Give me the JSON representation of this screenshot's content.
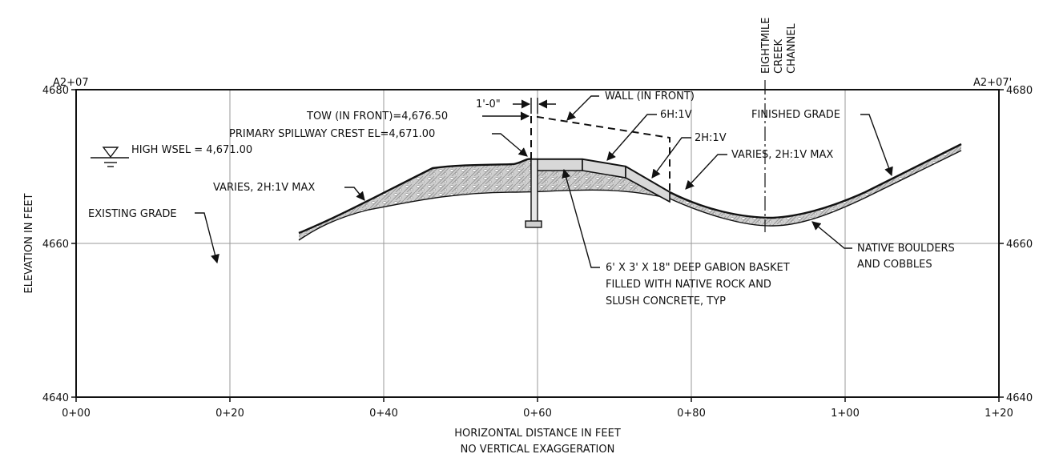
{
  "section": {
    "left_mark": "A2+07",
    "right_mark": "A2+07'"
  },
  "axes": {
    "y_labels_left": [
      "4680",
      "4660",
      "4640"
    ],
    "y_labels_right": [
      "4680",
      "4660",
      "4640"
    ],
    "x_labels": [
      "0+00",
      "0+20",
      "0+40",
      "0+60",
      "0+80",
      "1+00",
      "1+20"
    ],
    "y_title": "ELEVATION IN FEET",
    "x_title_line1": "HORIZONTAL DISTANCE IN FEET",
    "x_title_line2": "NO VERTICAL EXAGGERATION"
  },
  "callouts": {
    "channel_line1": "EIGHTMILE",
    "channel_line2": "CREEK",
    "channel_line3": "CHANNEL",
    "wall": "WALL (IN FRONT)",
    "dimension": "1'-0\"",
    "tow": "TOW (IN FRONT)=4,676.50",
    "spillway_crest": "PRIMARY SPILLWAY CREST EL=4,671.00",
    "high_wsel": "HIGH WSEL = 4,671.00",
    "slope_6h": "6H:1V",
    "slope_2h": "2H:1V",
    "varies_right": "VARIES, 2H:1V MAX",
    "varies_left": "VARIES, 2H:1V MAX",
    "finished_grade": "FINISHED GRADE",
    "existing_grade": "EXISTING GRADE",
    "native_line1": "NATIVE BOULDERS",
    "native_line2": "AND COBBLES",
    "gabion_line1": "6' X 3' X 18\" DEEP GABION BASKET",
    "gabion_line2": "FILLED WITH NATIVE ROCK AND",
    "gabion_line3": "SLUSH CONCRETE, TYP"
  }
}
